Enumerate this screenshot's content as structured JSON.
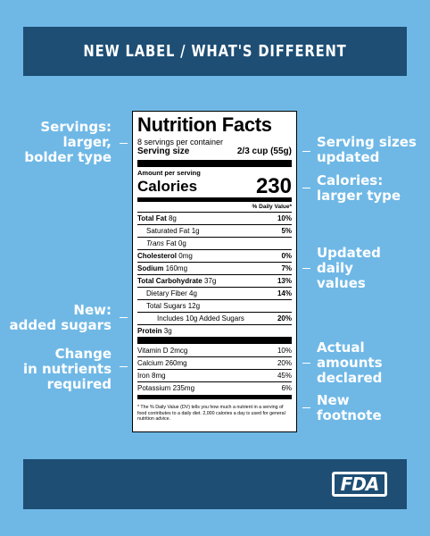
{
  "header": {
    "title": "NEW LABEL / WHAT'S DIFFERENT"
  },
  "footer": {
    "logo_text": "FDA"
  },
  "callouts_left": [
    {
      "lines": [
        "Servings:",
        "larger,",
        "bolder type"
      ]
    },
    {
      "lines": [
        "New:",
        "added sugars"
      ]
    },
    {
      "lines": [
        "Change",
        "in nutrients",
        "required"
      ]
    }
  ],
  "callouts_right": [
    {
      "lines": [
        "Serving sizes",
        "updated"
      ]
    },
    {
      "lines": [
        "Calories:",
        "larger type"
      ]
    },
    {
      "lines": [
        "Updated",
        "daily",
        "values"
      ]
    },
    {
      "lines": [
        "Actual",
        "amounts",
        "declared"
      ]
    },
    {
      "lines": [
        "New",
        "footnote"
      ]
    }
  ],
  "label": {
    "title": "Nutrition Facts",
    "servings_per_container": "8 servings per container",
    "serving_size_label": "Serving size",
    "serving_size_value": "2/3 cup (55g)",
    "amount_per_serving": "Amount per serving",
    "calories_label": "Calories",
    "calories_value": "230",
    "dv_header": "% Daily Value*",
    "nutrients": [
      {
        "name": "Total Fat",
        "amount": "8g",
        "dv": "10%"
      },
      {
        "name": "Saturated Fat",
        "amount": "1g",
        "dv": "5%"
      },
      {
        "name": "Trans",
        "amount": "Fat 0g",
        "dv": ""
      },
      {
        "name": "Cholesterol",
        "amount": "0mg",
        "dv": "0%"
      },
      {
        "name": "Sodium",
        "amount": "160mg",
        "dv": "7%"
      },
      {
        "name": "Total Carbohydrate",
        "amount": "37g",
        "dv": "13%"
      },
      {
        "name": "Dietary Fiber",
        "amount": "4g",
        "dv": "14%"
      },
      {
        "name": "Total Sugars",
        "amount": "12g",
        "dv": ""
      },
      {
        "name": "Includes 10g Added Sugars",
        "amount": "",
        "dv": "20%"
      },
      {
        "name": "Protein",
        "amount": "3g",
        "dv": ""
      }
    ],
    "vitamins": [
      {
        "name": "Vitamin D 2mcg",
        "dv": "10%"
      },
      {
        "name": "Calcium 260mg",
        "dv": "20%"
      },
      {
        "name": "Iron 8mg",
        "dv": "45%"
      },
      {
        "name": "Potassium 235mg",
        "dv": "6%"
      }
    ],
    "footnote": "* The % Daily Value (DV) tells you how much a nutrient in a serving of food contributes to a daily diet. 2,000 calories a day is used for general nutrition advice."
  }
}
